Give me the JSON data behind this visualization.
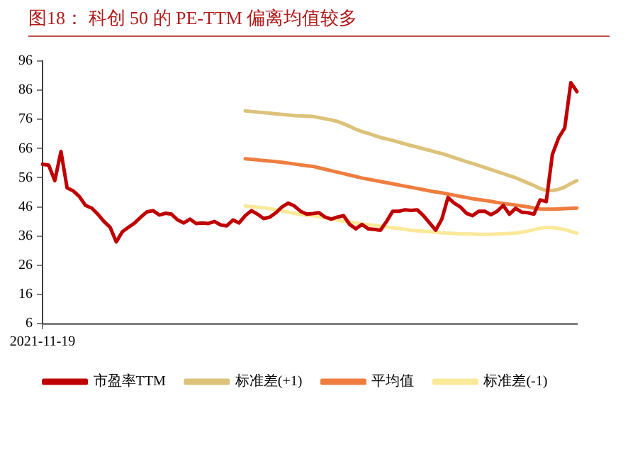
{
  "chart_data": {
    "type": "line",
    "title": "图18： 科创 50 的 PE-TTM 偏离均值较多",
    "categories": [
      "2021-11-19",
      null,
      null,
      null,
      null,
      null,
      null,
      null,
      null,
      null,
      null,
      null,
      null,
      null,
      null,
      null,
      null,
      null,
      null,
      null,
      null,
      null,
      null,
      null,
      null,
      null,
      null,
      null,
      null,
      null,
      null,
      null,
      null,
      null,
      null,
      null,
      null,
      null,
      null,
      null,
      null,
      null,
      null,
      null,
      null,
      null,
      null,
      null,
      null,
      null,
      null,
      null,
      null,
      null,
      null,
      null,
      null,
      null,
      null,
      null,
      null,
      null,
      null,
      null,
      null,
      null,
      null,
      null,
      null,
      null,
      null,
      null,
      null,
      null,
      null,
      null,
      null,
      null,
      null,
      null,
      null,
      null,
      null,
      null,
      null,
      null,
      null,
      null
    ],
    "series": [
      {
        "name": "市盈率TTM",
        "color": "#c00000",
        "values": [
          60.6,
          60.3,
          55,
          65,
          52.5,
          51.5,
          49.5,
          46.5,
          45.6,
          43.5,
          41,
          39,
          34,
          37.5,
          39,
          40.5,
          42.5,
          44.3,
          44.7,
          43.2,
          43.8,
          43.5,
          41.5,
          40.5,
          41.8,
          40.3,
          40.5,
          40.3,
          41,
          39.8,
          39.5,
          41.5,
          40.5,
          43,
          44.7,
          43.5,
          42,
          42.5,
          44,
          46,
          47.3,
          46.3,
          44.5,
          43.5,
          43.7,
          44,
          42.5,
          41.8,
          42.5,
          43,
          40,
          38.5,
          40,
          38.5,
          38.3,
          38,
          41,
          44.5,
          44.5,
          45,
          44.8,
          45,
          43,
          40.5,
          38,
          41.8,
          49.2,
          47.3,
          46,
          43.8,
          43,
          44.5,
          44.5,
          43.3,
          44.5,
          46.5,
          43.5,
          45.5,
          44.2,
          44,
          43.5,
          48.4,
          47.8,
          64,
          69.6,
          73,
          88.6,
          85.5
        ]
      },
      {
        "name": "标准差(+1)",
        "color": "#dcc27a",
        "values": [
          null,
          null,
          null,
          null,
          null,
          null,
          null,
          null,
          null,
          null,
          null,
          null,
          null,
          null,
          null,
          null,
          null,
          null,
          null,
          null,
          null,
          null,
          null,
          null,
          null,
          null,
          null,
          null,
          null,
          null,
          null,
          null,
          null,
          78.9,
          78.7,
          78.5,
          78.3,
          78.1,
          77.9,
          77.7,
          77.5,
          77.3,
          77.2,
          77.1,
          77,
          76.6,
          76.2,
          75.8,
          75.3,
          74.5,
          73.6,
          72.6,
          71.8,
          71.2,
          70.5,
          69.8,
          69.3,
          68.8,
          68.2,
          67.6,
          67,
          66.5,
          65.9,
          65.4,
          64.8,
          64.3,
          63.6,
          62.9,
          62.2,
          61.5,
          60.9,
          60.2,
          59.5,
          58.8,
          58.1,
          57.4,
          56.7,
          56,
          55.1,
          54.2,
          53.3,
          52.3,
          51.6,
          51.6,
          52,
          52.8,
          54,
          55
        ]
      },
      {
        "name": "平均值",
        "color": "#ee7d3f",
        "values": [
          null,
          null,
          null,
          null,
          null,
          null,
          null,
          null,
          null,
          null,
          null,
          null,
          null,
          null,
          null,
          null,
          null,
          null,
          null,
          null,
          null,
          null,
          null,
          null,
          null,
          null,
          null,
          null,
          null,
          null,
          null,
          null,
          null,
          62.5,
          62.3,
          62.1,
          61.9,
          61.7,
          61.5,
          61.3,
          61,
          60.7,
          60.4,
          60.1,
          59.9,
          59.4,
          58.9,
          58.4,
          57.9,
          57.4,
          56.9,
          56.4,
          55.9,
          55.5,
          55.1,
          54.7,
          54.3,
          53.9,
          53.5,
          53.1,
          52.7,
          52.3,
          51.9,
          51.5,
          51.1,
          50.8,
          50.4,
          50,
          49.6,
          49.2,
          48.8,
          48.5,
          48.2,
          47.9,
          47.5,
          47.2,
          46.9,
          46.6,
          46.3,
          46,
          45.6,
          45.3,
          45.2,
          45.2,
          45.3,
          45.4,
          45.5,
          45.6
        ]
      },
      {
        "name": "标准差(-1)",
        "color": "#fbe99a",
        "values": [
          null,
          null,
          null,
          null,
          null,
          null,
          null,
          null,
          null,
          null,
          null,
          null,
          null,
          null,
          null,
          null,
          null,
          null,
          null,
          null,
          null,
          null,
          null,
          null,
          null,
          null,
          null,
          null,
          null,
          null,
          null,
          null,
          null,
          46.3,
          46.1,
          45.9,
          45.7,
          45.4,
          45,
          44.6,
          44.2,
          43.8,
          43.4,
          43.1,
          43,
          42.6,
          42.3,
          41.9,
          41.5,
          41.1,
          40.8,
          40.5,
          40.2,
          39.9,
          39.7,
          39.4,
          39.1,
          38.8,
          38.6,
          38.3,
          38,
          37.8,
          37.7,
          37.5,
          37.3,
          37.1,
          37,
          36.9,
          36.8,
          36.7,
          36.7,
          36.6,
          36.6,
          36.6,
          36.7,
          36.8,
          36.9,
          37,
          37.3,
          37.7,
          38.2,
          38.7,
          38.9,
          38.9,
          38.6,
          38.2,
          37.6,
          37
        ]
      }
    ],
    "ylim": [
      6,
      96
    ],
    "yticks": [
      6,
      16,
      26,
      36,
      46,
      56,
      66,
      76,
      86,
      96
    ],
    "grid": false,
    "legend": "bottom",
    "marker": "none",
    "line_style": "solid"
  }
}
